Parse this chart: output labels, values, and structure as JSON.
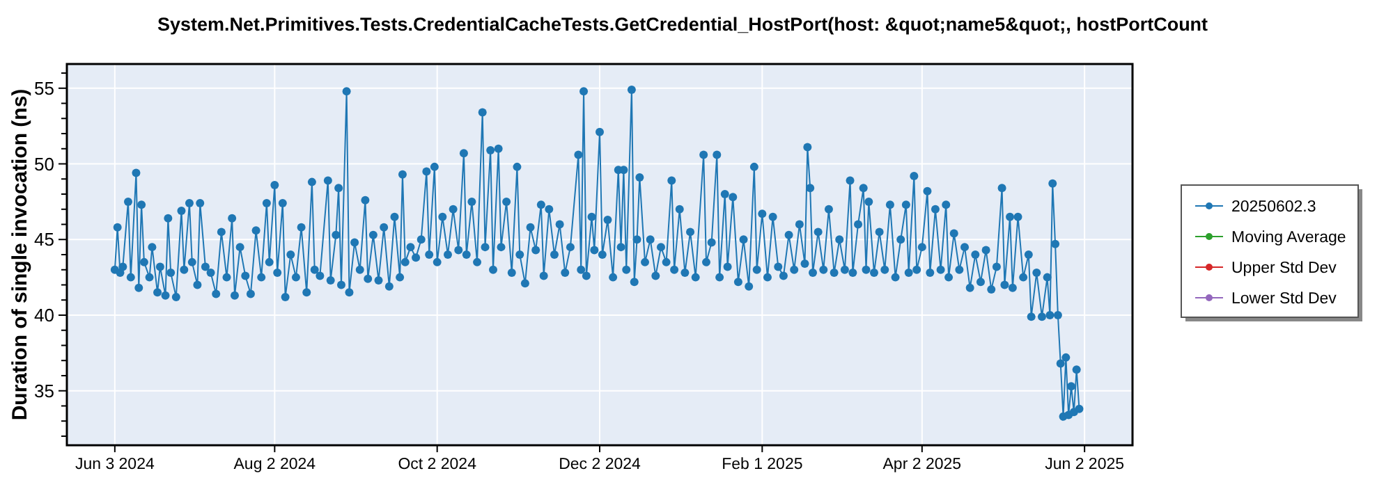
{
  "chart_data": {
    "type": "line",
    "title": "System.Net.Primitives.Tests.CredentialCacheTests.GetCredential_HostPort(host: &quot;name5&quot;, hostPortCount",
    "ylabel": "Duration of single invocation (ns)",
    "xlim": [
      "2024-05-16",
      "2025-06-20"
    ],
    "xticks": [
      {
        "value": "2024-06-03",
        "label": "Jun 3 2024"
      },
      {
        "value": "2024-08-02",
        "label": "Aug 2 2024"
      },
      {
        "value": "2024-10-02",
        "label": "Oct 2 2024"
      },
      {
        "value": "2024-12-02",
        "label": "Dec 2 2024"
      },
      {
        "value": "2025-02-01",
        "label": "Feb 1 2025"
      },
      {
        "value": "2025-04-02",
        "label": "Apr 2 2025"
      },
      {
        "value": "2025-06-02",
        "label": "Jun 2 2025"
      }
    ],
    "ylim": [
      31.4,
      56.6
    ],
    "yticks": [
      {
        "value": 32,
        "label": null
      },
      {
        "value": 33,
        "label": null
      },
      {
        "value": 34,
        "label": null
      },
      35,
      {
        "value": 36,
        "label": null
      },
      {
        "value": 37,
        "label": null
      },
      {
        "value": 38,
        "label": null
      },
      {
        "value": 39,
        "label": null
      },
      40,
      {
        "value": 41,
        "label": null
      },
      {
        "value": 42,
        "label": null
      },
      {
        "value": 43,
        "label": null
      },
      {
        "value": 44,
        "label": null
      },
      45,
      {
        "value": 46,
        "label": null
      },
      {
        "value": 47,
        "label": null
      },
      {
        "value": 48,
        "label": null
      },
      {
        "value": 49,
        "label": null
      },
      50,
      {
        "value": 51,
        "label": null
      },
      {
        "value": 52,
        "label": null
      },
      {
        "value": 53,
        "label": null
      },
      {
        "value": 54,
        "label": null
      },
      55,
      {
        "value": 56,
        "label": null
      }
    ],
    "grid": true,
    "legend": "right",
    "marker": "circle",
    "line_style": "solid",
    "series": [
      {
        "name": "20250602.3",
        "color": "#1f77b4",
        "x": [
          "2024-06-03",
          "2024-06-04",
          "2024-06-05",
          "2024-06-06",
          "2024-06-08",
          "2024-06-09",
          "2024-06-11",
          "2024-06-12",
          "2024-06-13",
          "2024-06-14",
          "2024-06-16",
          "2024-06-17",
          "2024-06-19",
          "2024-06-20",
          "2024-06-22",
          "2024-06-23",
          "2024-06-24",
          "2024-06-26",
          "2024-06-28",
          "2024-06-29",
          "2024-07-01",
          "2024-07-02",
          "2024-07-04",
          "2024-07-05",
          "2024-07-07",
          "2024-07-09",
          "2024-07-11",
          "2024-07-13",
          "2024-07-15",
          "2024-07-17",
          "2024-07-18",
          "2024-07-20",
          "2024-07-22",
          "2024-07-24",
          "2024-07-26",
          "2024-07-28",
          "2024-07-30",
          "2024-07-31",
          "2024-08-02",
          "2024-08-03",
          "2024-08-05",
          "2024-08-06",
          "2024-08-08",
          "2024-08-10",
          "2024-08-12",
          "2024-08-14",
          "2024-08-16",
          "2024-08-17",
          "2024-08-19",
          "2024-08-22",
          "2024-08-23",
          "2024-08-25",
          "2024-08-26",
          "2024-08-27",
          "2024-08-29",
          "2024-08-30",
          "2024-09-01",
          "2024-09-03",
          "2024-09-05",
          "2024-09-06",
          "2024-09-08",
          "2024-09-10",
          "2024-09-12",
          "2024-09-14",
          "2024-09-16",
          "2024-09-18",
          "2024-09-19",
          "2024-09-20",
          "2024-09-22",
          "2024-09-24",
          "2024-09-26",
          "2024-09-28",
          "2024-09-29",
          "2024-10-01",
          "2024-10-02",
          "2024-10-04",
          "2024-10-06",
          "2024-10-08",
          "2024-10-10",
          "2024-10-12",
          "2024-10-13",
          "2024-10-15",
          "2024-10-17",
          "2024-10-19",
          "2024-10-20",
          "2024-10-22",
          "2024-10-23",
          "2024-10-25",
          "2024-10-26",
          "2024-10-28",
          "2024-10-30",
          "2024-11-01",
          "2024-11-02",
          "2024-11-04",
          "2024-11-06",
          "2024-11-08",
          "2024-11-10",
          "2024-11-11",
          "2024-11-13",
          "2024-11-15",
          "2024-11-17",
          "2024-11-19",
          "2024-11-21",
          "2024-11-24",
          "2024-11-25",
          "2024-11-26",
          "2024-11-27",
          "2024-11-29",
          "2024-11-30",
          "2024-12-02",
          "2024-12-03",
          "2024-12-05",
          "2024-12-07",
          "2024-12-09",
          "2024-12-10",
          "2024-12-11",
          "2024-12-12",
          "2024-12-14",
          "2024-12-15",
          "2024-12-16",
          "2024-12-17",
          "2024-12-19",
          "2024-12-21",
          "2024-12-23",
          "2024-12-25",
          "2024-12-27",
          "2024-12-29",
          "2024-12-30",
          "2025-01-01",
          "2025-01-03",
          "2025-01-05",
          "2025-01-07",
          "2025-01-10",
          "2025-01-11",
          "2025-01-13",
          "2025-01-15",
          "2025-01-16",
          "2025-01-18",
          "2025-01-19",
          "2025-01-21",
          "2025-01-23",
          "2025-01-25",
          "2025-01-27",
          "2025-01-29",
          "2025-01-30",
          "2025-02-01",
          "2025-02-03",
          "2025-02-05",
          "2025-02-07",
          "2025-02-09",
          "2025-02-11",
          "2025-02-13",
          "2025-02-15",
          "2025-02-17",
          "2025-02-18",
          "2025-02-19",
          "2025-02-20",
          "2025-02-22",
          "2025-02-24",
          "2025-02-26",
          "2025-02-28",
          "2025-03-02",
          "2025-03-04",
          "2025-03-06",
          "2025-03-07",
          "2025-03-09",
          "2025-03-11",
          "2025-03-12",
          "2025-03-13",
          "2025-03-15",
          "2025-03-17",
          "2025-03-19",
          "2025-03-21",
          "2025-03-23",
          "2025-03-25",
          "2025-03-27",
          "2025-03-28",
          "2025-03-30",
          "2025-03-31",
          "2025-04-02",
          "2025-04-04",
          "2025-04-05",
          "2025-04-07",
          "2025-04-09",
          "2025-04-11",
          "2025-04-12",
          "2025-04-14",
          "2025-04-16",
          "2025-04-18",
          "2025-04-20",
          "2025-04-22",
          "2025-04-24",
          "2025-04-26",
          "2025-04-28",
          "2025-04-30",
          "2025-05-02",
          "2025-05-03",
          "2025-05-05",
          "2025-05-06",
          "2025-05-08",
          "2025-05-10",
          "2025-05-12",
          "2025-05-13",
          "2025-05-15",
          "2025-05-17",
          "2025-05-19",
          "2025-05-20",
          "2025-05-21",
          "2025-05-22",
          "2025-05-23",
          "2025-05-24",
          "2025-05-25",
          "2025-05-26",
          "2025-05-27",
          "2025-05-28",
          "2025-05-29",
          "2025-05-30",
          "2025-05-31"
        ],
        "values": [
          43.0,
          45.8,
          42.8,
          43.2,
          47.5,
          42.5,
          49.4,
          41.8,
          47.3,
          43.5,
          42.5,
          44.5,
          41.5,
          43.2,
          41.3,
          46.4,
          42.8,
          41.2,
          46.9,
          43.0,
          47.4,
          43.5,
          42.0,
          47.4,
          43.2,
          42.8,
          41.4,
          45.5,
          42.5,
          46.4,
          41.3,
          44.5,
          42.6,
          41.4,
          45.6,
          42.5,
          47.4,
          43.5,
          48.6,
          42.8,
          47.4,
          41.2,
          44.0,
          42.5,
          45.8,
          41.5,
          48.8,
          43.0,
          42.6,
          48.9,
          42.3,
          45.3,
          48.4,
          42.0,
          54.8,
          41.5,
          44.8,
          43.0,
          47.6,
          42.4,
          45.3,
          42.3,
          45.8,
          41.9,
          46.5,
          42.5,
          49.3,
          43.5,
          44.5,
          43.8,
          45.0,
          49.5,
          44.0,
          49.8,
          43.5,
          46.5,
          44.0,
          47.0,
          44.3,
          50.7,
          44.0,
          47.5,
          43.5,
          53.4,
          44.5,
          50.9,
          43.0,
          51.0,
          44.5,
          47.5,
          42.8,
          49.8,
          44.0,
          42.1,
          45.8,
          44.3,
          47.3,
          42.6,
          47.0,
          44.0,
          46.0,
          42.8,
          44.5,
          50.6,
          43.0,
          54.8,
          42.6,
          46.5,
          44.3,
          52.1,
          44.0,
          46.3,
          42.5,
          49.6,
          44.5,
          49.6,
          43.0,
          54.9,
          42.2,
          45.0,
          49.1,
          43.5,
          45.0,
          42.6,
          44.5,
          43.5,
          48.9,
          43.0,
          47.0,
          42.8,
          45.5,
          42.5,
          50.6,
          43.5,
          44.8,
          50.6,
          42.5,
          48.0,
          43.2,
          47.8,
          42.2,
          45.0,
          41.9,
          49.8,
          43.0,
          46.7,
          42.5,
          46.5,
          43.2,
          42.6,
          45.3,
          43.0,
          46.0,
          43.4,
          51.1,
          48.4,
          42.8,
          45.5,
          43.0,
          47.0,
          42.8,
          45.0,
          43.0,
          48.9,
          42.8,
          46.0,
          48.4,
          43.0,
          47.5,
          42.8,
          45.5,
          43.0,
          47.3,
          42.5,
          45.0,
          47.3,
          42.8,
          49.2,
          43.0,
          44.5,
          48.2,
          42.8,
          47.0,
          43.0,
          47.3,
          42.5,
          45.4,
          43.0,
          44.5,
          41.8,
          44.0,
          42.2,
          44.3,
          41.7,
          43.2,
          48.4,
          42.0,
          46.5,
          41.8,
          46.5,
          42.5,
          44.0,
          39.9,
          42.8,
          39.9,
          42.5,
          40.0,
          48.7,
          44.7,
          40.0,
          36.8,
          33.3,
          37.2,
          33.4,
          35.3,
          33.6,
          36.4,
          33.8
        ]
      },
      {
        "name": "Moving Average",
        "color": "#2ca02c"
      },
      {
        "name": "Upper Std Dev",
        "color": "#d62728"
      },
      {
        "name": "Lower Std Dev",
        "color": "#9467bd"
      }
    ]
  }
}
